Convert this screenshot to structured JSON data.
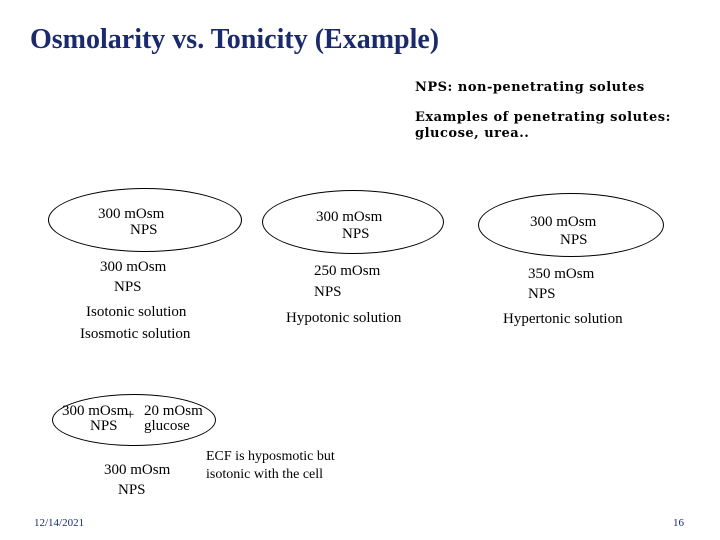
{
  "slide": {
    "title": "Osmolarity vs. Tonicity (Example)",
    "legend": {
      "nps_def": "NPS: non-penetrating solutes",
      "examples_heading": "Examples of penetrating solutes:",
      "examples_list": "glucose, urea.."
    },
    "isotonic": {
      "cell_osm": "300 mOsm",
      "cell_nps": "NPS",
      "sol_osm": "300 mOsm",
      "sol_nps": "NPS",
      "label1": "Isotonic solution",
      "label2": "Isosmotic solution"
    },
    "hypotonic": {
      "cell_osm": "300 mOsm",
      "cell_nps": "NPS",
      "sol_osm": "250 mOsm",
      "sol_nps": "NPS",
      "label": "Hypotonic solution"
    },
    "hypertonic": {
      "cell_osm": "300 mOsm",
      "cell_nps": "NPS",
      "sol_osm": "350 mOsm",
      "sol_nps": "NPS",
      "label": "Hypertonic solution"
    },
    "glucose_example": {
      "cell_osm": "300 mOsm",
      "plus": "+",
      "glucose_osm": "20 mOsm",
      "cell_nps": "NPS",
      "glucose_name": "glucose",
      "sol_osm": "300 mOsm",
      "sol_nps": "NPS",
      "note_line1": "ECF is hyposmotic but",
      "note_line2": "isotonic with the cell"
    },
    "footer": {
      "date": "12/14/2021",
      "page": "16"
    }
  }
}
